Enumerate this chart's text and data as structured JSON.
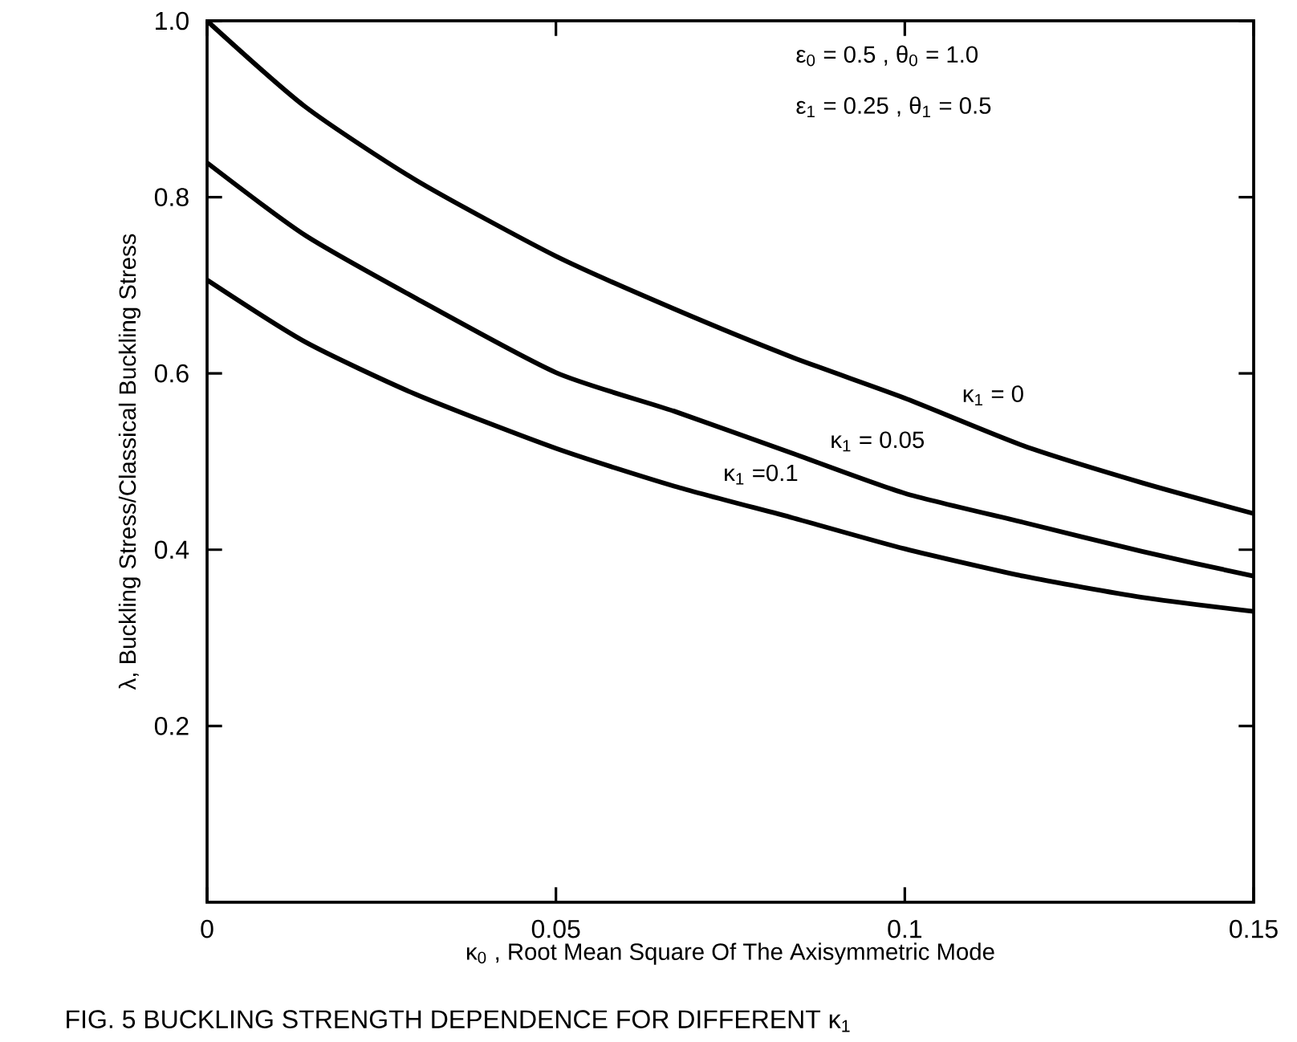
{
  "chart_data": {
    "type": "line",
    "title": "FIG. 5 BUCKLING STRENGTH DEPENDENCE FOR DIFFERENT κ$_{1}$",
    "xlabel": "κ$_{0}$ , Root Mean Square Of The Axisymmetric Mode",
    "ylabel": "λ, Buckling Stress/Classical Buckling Stress",
    "x": [
      0,
      0.014,
      0.03,
      0.05,
      0.067,
      0.084,
      0.1,
      0.117,
      0.134,
      0.15
    ],
    "series": [
      {
        "name": "κ$_{1}$ = 0",
        "color": "#000000",
        "values": [
          1.0,
          0.903,
          0.819,
          0.733,
          0.673,
          0.618,
          0.572,
          0.518,
          0.476,
          0.441
        ]
      },
      {
        "name": "κ$_{1}$ = 0.05",
        "color": "#000000",
        "values": [
          0.839,
          0.757,
          0.685,
          0.601,
          0.557,
          0.509,
          0.464,
          0.431,
          0.398,
          0.37
        ]
      },
      {
        "name": "κ$_{1}$ =0.1",
        "color": "#000000",
        "values": [
          0.706,
          0.636,
          0.576,
          0.515,
          0.472,
          0.436,
          0.401,
          0.37,
          0.346,
          0.33
        ]
      }
    ],
    "annotations": [
      "ε$_{0}$ = 0.5 ,  θ$_{0}$ = 1.0",
      "ε$_{1}$ = 0.25 , θ$_{1}$ = 0.5"
    ],
    "xlim": [
      0,
      0.15
    ],
    "ylim": [
      0,
      1.0
    ],
    "xticks": [
      0,
      0.05,
      0.1,
      0.15
    ],
    "yticks": [
      0.2,
      0.4,
      0.6,
      0.8,
      {
        "value": 1.0,
        "label": "1.0"
      }
    ],
    "grid": false,
    "marker": "none",
    "line_style": "solid"
  }
}
